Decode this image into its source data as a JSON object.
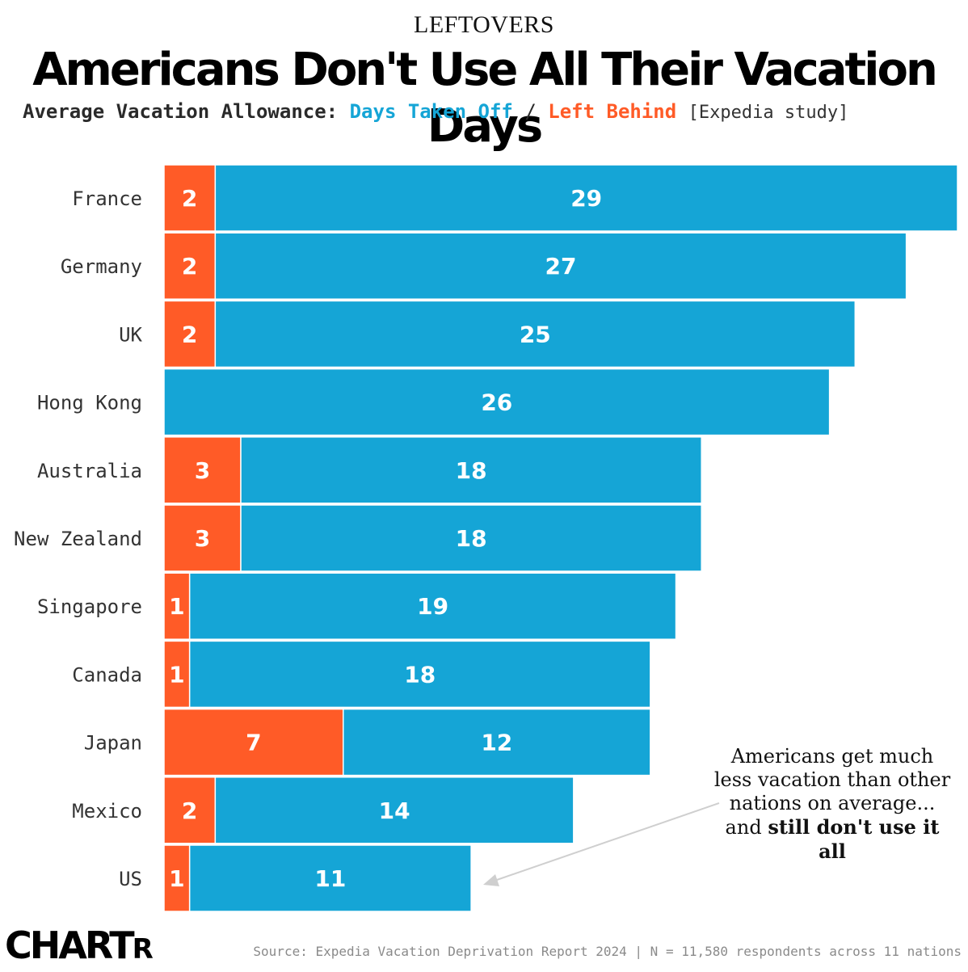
{
  "header": {
    "kicker": "LEFTOVERS",
    "title": "Americans Don't Use All Their Vacation Days",
    "subtitle_prefix": "Average Vacation Allowance:",
    "subtitle_taken": "Days Taken Off",
    "subtitle_sep": "/",
    "subtitle_left": "Left Behind",
    "subtitle_source": "[Expedia study]"
  },
  "colors": {
    "taken": "#15a5d6",
    "left_behind": "#ff5b27"
  },
  "chart_data": {
    "type": "bar",
    "orientation": "horizontal",
    "stacked": true,
    "categories": [
      "France",
      "Germany",
      "UK",
      "Hong Kong",
      "Australia",
      "New Zealand",
      "Singapore",
      "Canada",
      "Japan",
      "Mexico",
      "US"
    ],
    "series": [
      {
        "name": "Left Behind",
        "values": [
          2,
          2,
          2,
          0,
          3,
          3,
          1,
          1,
          7,
          2,
          1
        ]
      },
      {
        "name": "Days Taken Off",
        "values": [
          29,
          27,
          25,
          26,
          18,
          18,
          19,
          18,
          12,
          14,
          11
        ]
      }
    ],
    "xlim": [
      0,
      31
    ]
  },
  "annotation": {
    "text_plain": "Americans get much less vacation than other nations on average... and",
    "text_bold": "still don't use it all"
  },
  "footer": {
    "logo_main": "CHART",
    "logo_small": "R",
    "source": "Source: Expedia Vacation Deprivation Report 2024 | N = 11,580 respondents across 11 nations"
  }
}
